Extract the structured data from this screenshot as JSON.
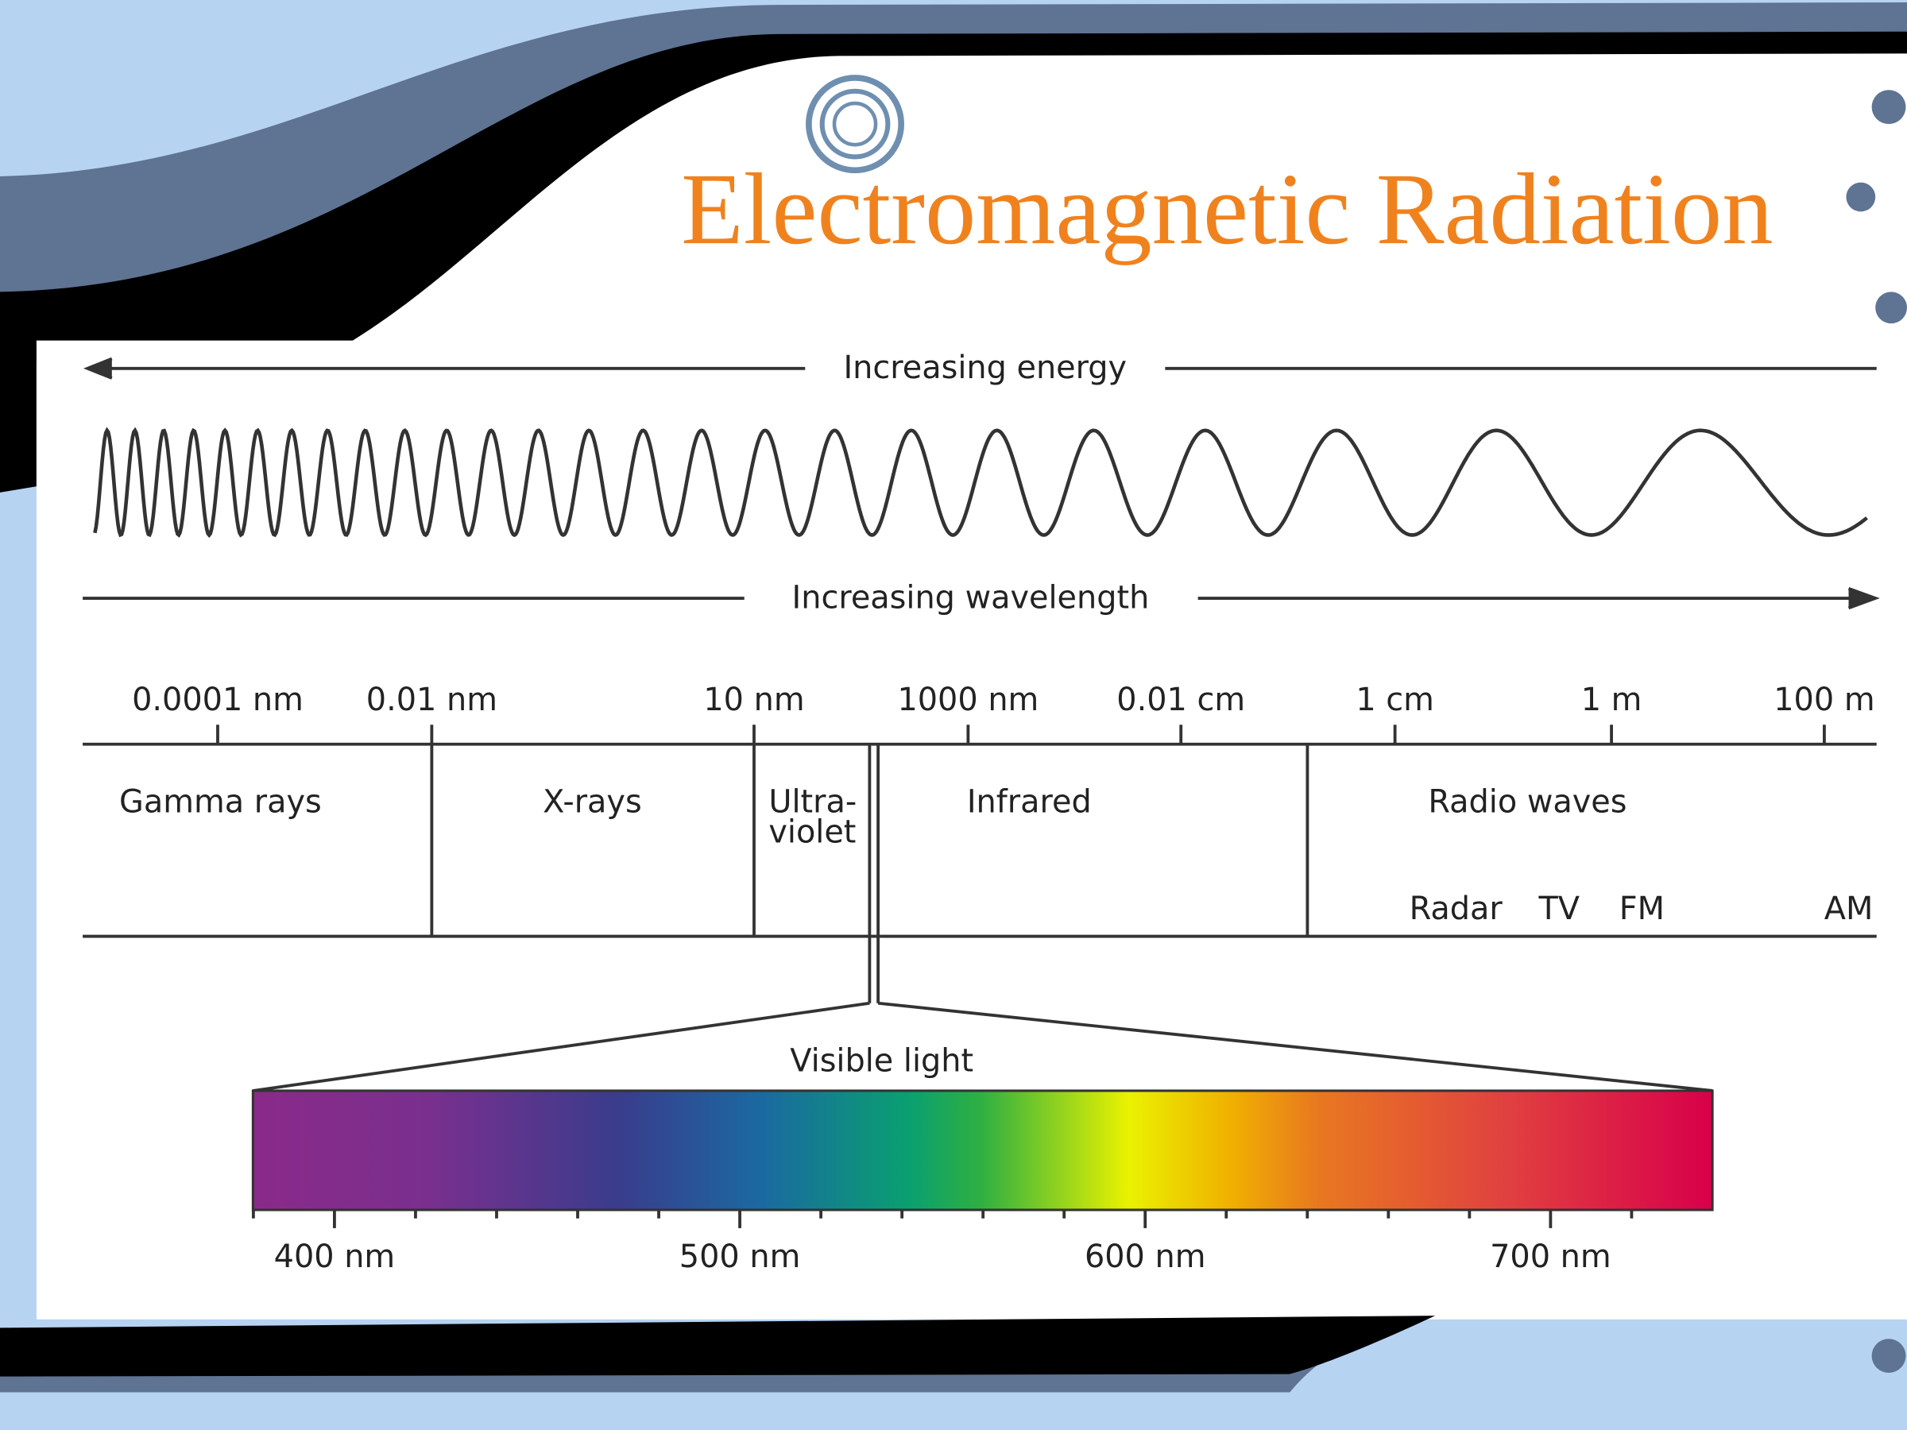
{
  "title": "Electromagnetic Radiation",
  "energy_label": "Increasing energy",
  "wavelength_label": "Increasing wavelength",
  "scale": [
    "0.0001 nm",
    "0.01 nm",
    "10 nm",
    "1000 nm",
    "0.01 cm",
    "1 cm",
    "1 m",
    "100 m"
  ],
  "regions": [
    "Gamma rays",
    "X-rays",
    "Ultra-",
    "violet",
    "Infrared",
    "Radio waves"
  ],
  "radio_bands": [
    "Radar",
    "TV",
    "FM",
    "AM"
  ],
  "visible": {
    "label": "Visible light",
    "ticks": [
      "400 nm",
      "500 nm",
      "600 nm",
      "700 nm"
    ]
  }
}
